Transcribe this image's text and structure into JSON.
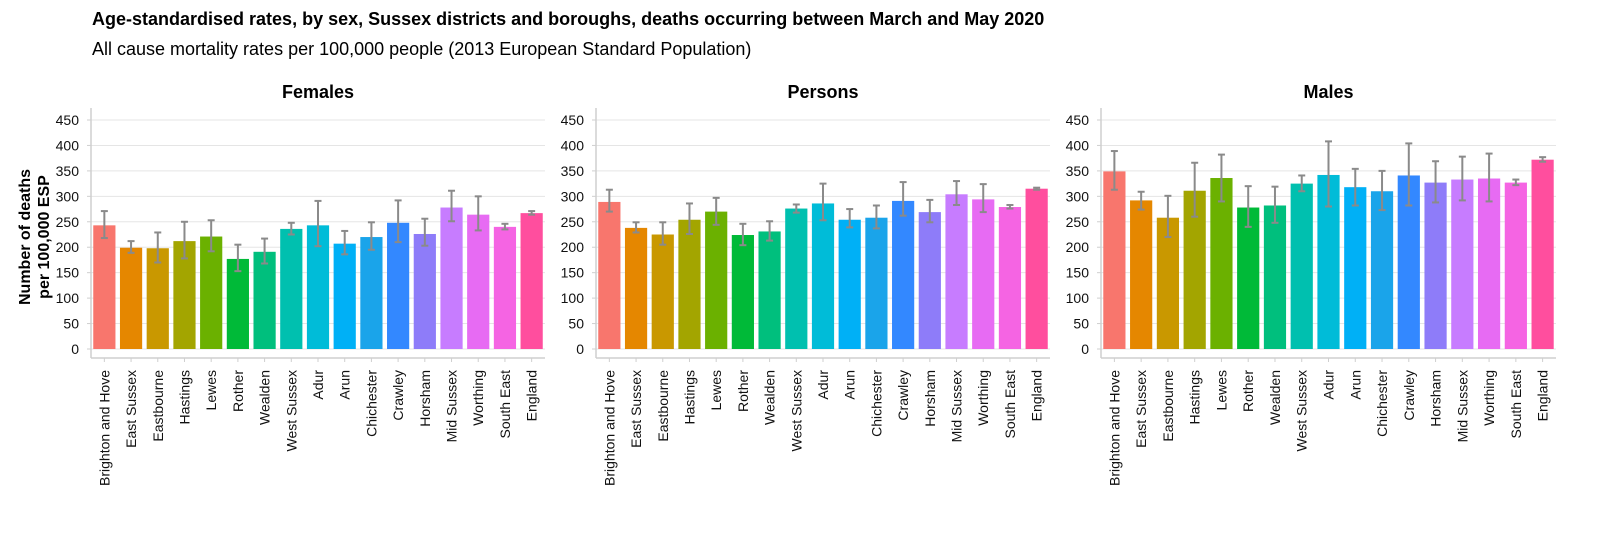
{
  "title": "Age-standardised rates, by sex, Sussex districts and boroughs, deaths occurring between March and May 2020",
  "subtitle": "All cause mortality rates per 100,000 people (2013 European Standard Population)",
  "chart_data": {
    "type": "bar",
    "title": "Age-standardised rates, by sex, Sussex districts and boroughs, deaths occurring between March and May 2020",
    "subtitle": "All cause mortality rates per 100,000 people (2013 European Standard Population)",
    "ylabel": [
      "Number of deaths",
      "per 100,000 ESP"
    ],
    "xlabel": "",
    "ylim": [
      0,
      450
    ],
    "yticks": [
      0,
      50,
      100,
      150,
      200,
      250,
      300,
      350,
      400,
      450
    ],
    "grid": true,
    "categories": [
      "Brighton and Hove",
      "East Sussex",
      "Eastbourne",
      "Hastings",
      "Lewes",
      "Rother",
      "Wealden",
      "West Sussex",
      "Adur",
      "Arun",
      "Chichester",
      "Crawley",
      "Horsham",
      "Mid Sussex",
      "Worthing",
      "South East",
      "England"
    ],
    "colors": [
      "#F8766D",
      "#E58700",
      "#C99800",
      "#A3A500",
      "#6BB100",
      "#00BA38",
      "#00BF7D",
      "#00C0AF",
      "#00BCD8",
      "#00B0F6",
      "#1AA4EA",
      "#3388FF",
      "#8E7CF9",
      "#C77CFF",
      "#E76BF3",
      "#F564E3",
      "#FF4E9E"
    ],
    "panels": [
      {
        "name": "Females",
        "values": [
          243,
          199,
          198,
          212,
          221,
          177,
          191,
          236,
          243,
          207,
          220,
          248,
          226,
          278,
          264,
          240,
          267
        ],
        "lower": [
          218,
          189,
          170,
          178,
          192,
          153,
          168,
          225,
          202,
          186,
          195,
          210,
          203,
          251,
          233,
          235,
          264
        ],
        "upper": [
          271,
          212,
          229,
          250,
          253,
          205,
          217,
          248,
          291,
          232,
          249,
          292,
          256,
          311,
          300,
          246,
          271
        ]
      },
      {
        "name": "Persons",
        "values": [
          289,
          238,
          225,
          254,
          270,
          224,
          231,
          276,
          286,
          254,
          258,
          291,
          269,
          304,
          294,
          279,
          315
        ],
        "lower": [
          270,
          229,
          205,
          226,
          244,
          204,
          213,
          268,
          253,
          239,
          237,
          262,
          249,
          283,
          269,
          276,
          313
        ],
        "upper": [
          313,
          249,
          249,
          286,
          297,
          246,
          251,
          284,
          325,
          275,
          282,
          328,
          293,
          330,
          324,
          283,
          317
        ]
      },
      {
        "name": "Males",
        "values": [
          349,
          292,
          258,
          311,
          336,
          278,
          282,
          325,
          342,
          318,
          310,
          341,
          327,
          333,
          335,
          327,
          372
        ],
        "lower": [
          313,
          274,
          220,
          260,
          290,
          240,
          248,
          310,
          280,
          282,
          273,
          282,
          288,
          292,
          290,
          322,
          368
        ],
        "upper": [
          389,
          309,
          301,
          366,
          382,
          320,
          319,
          341,
          408,
          354,
          350,
          404,
          369,
          378,
          384,
          333,
          377
        ]
      }
    ]
  }
}
